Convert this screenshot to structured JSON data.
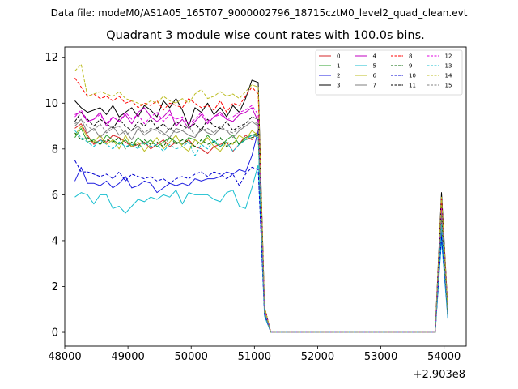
{
  "chart_data": {
    "type": "line",
    "suptitle": "Data file: modeM0/AS1A05_165T07_9000002796_18715cztM0_level2_quad_clean.evt",
    "title": "Quadrant 3 module wise count rates with 100.0s bins.",
    "xlabel": "",
    "ylabel": "",
    "x_offset_label": "+2.903e8",
    "xlim": [
      48000,
      54350
    ],
    "ylim": [
      -0.6,
      12.45
    ],
    "xticks": [
      48000,
      49000,
      50000,
      51000,
      52000,
      53000,
      54000
    ],
    "yticks": [
      0,
      2,
      4,
      6,
      8,
      10,
      12
    ],
    "legend_position": "upper right",
    "legend_columns": 4,
    "x": [
      48160,
      48260,
      48360,
      48460,
      48560,
      48660,
      48760,
      48860,
      48960,
      49060,
      49160,
      49260,
      49360,
      49460,
      49560,
      49660,
      49760,
      49860,
      49960,
      50060,
      50160,
      50260,
      50360,
      50460,
      50560,
      50660,
      50760,
      50860,
      50960,
      51060,
      51160,
      51260,
      51360,
      53860,
      53960,
      54060
    ],
    "series": [
      {
        "name": "0",
        "color": "#d62728",
        "dash": "solid",
        "values": [
          8.9,
          9.1,
          8.6,
          8.2,
          8.4,
          8.3,
          8.6,
          8.5,
          8.3,
          8.1,
          8.2,
          8.3,
          8.0,
          8.2,
          8.4,
          8.1,
          8.3,
          8.2,
          8.4,
          8.1,
          8.0,
          7.8,
          8.1,
          8.2,
          8.3,
          7.9,
          8.2,
          8.6,
          8.4,
          8.8,
          1.0,
          0.0,
          0.0,
          0.0,
          5.0,
          0.9
        ]
      },
      {
        "name": "1",
        "color": "#2ca02c",
        "dash": "solid",
        "values": [
          8.5,
          8.9,
          8.3,
          8.4,
          8.2,
          8.6,
          8.4,
          8.2,
          8.4,
          8.1,
          8.5,
          8.2,
          8.4,
          8.1,
          8.3,
          8.5,
          8.3,
          8.2,
          8.5,
          8.4,
          8.2,
          8.6,
          8.3,
          8.1,
          8.4,
          8.6,
          8.2,
          8.5,
          8.6,
          8.7,
          0.9,
          0.0,
          0.0,
          0.0,
          4.9,
          0.8
        ]
      },
      {
        "name": "2",
        "color": "#1f1fe0",
        "dash": "solid",
        "values": [
          6.6,
          7.2,
          6.5,
          6.5,
          6.4,
          6.6,
          6.3,
          6.5,
          6.8,
          6.3,
          6.4,
          6.6,
          6.5,
          6.1,
          6.3,
          6.5,
          6.4,
          6.5,
          6.4,
          6.7,
          6.6,
          6.7,
          6.7,
          6.8,
          7.0,
          6.9,
          7.1,
          7.0,
          7.7,
          8.8,
          0.8,
          0.0,
          0.0,
          0.0,
          4.4,
          0.6
        ]
      },
      {
        "name": "3",
        "color": "#000000",
        "dash": "solid",
        "values": [
          10.1,
          9.8,
          9.6,
          9.7,
          9.8,
          9.5,
          9.9,
          9.4,
          9.6,
          9.8,
          9.4,
          9.9,
          9.7,
          9.4,
          10.1,
          9.8,
          10.2,
          9.7,
          9.0,
          9.8,
          9.6,
          10.0,
          9.5,
          9.8,
          9.4,
          9.9,
          9.6,
          10.2,
          11.0,
          10.9,
          1.1,
          0.0,
          0.0,
          0.0,
          6.1,
          1.0
        ]
      },
      {
        "name": "4",
        "color": "#c000c0",
        "dash": "solid",
        "values": [
          9.5,
          9.6,
          9.2,
          9.3,
          9.6,
          9.0,
          9.4,
          9.2,
          9.5,
          9.1,
          9.6,
          9.8,
          9.4,
          9.2,
          9.4,
          9.7,
          9.0,
          9.3,
          8.9,
          9.2,
          9.5,
          9.1,
          9.4,
          9.6,
          9.3,
          9.2,
          9.5,
          9.6,
          9.8,
          9.2,
          1.0,
          0.0,
          0.0,
          0.0,
          5.3,
          0.9
        ]
      },
      {
        "name": "5",
        "color": "#17becf",
        "dash": "solid",
        "values": [
          5.9,
          6.1,
          6.0,
          5.6,
          6.0,
          6.0,
          5.4,
          5.5,
          5.2,
          5.5,
          5.8,
          5.7,
          5.9,
          5.8,
          6.0,
          5.9,
          6.2,
          5.6,
          6.1,
          6.0,
          6.0,
          6.0,
          5.8,
          5.7,
          6.1,
          6.2,
          5.5,
          5.4,
          6.3,
          7.3,
          0.7,
          0.0,
          0.0,
          0.0,
          4.0,
          0.6
        ]
      },
      {
        "name": "6",
        "color": "#bcbd22",
        "dash": "solid",
        "values": [
          8.6,
          9.0,
          8.5,
          8.3,
          8.6,
          8.2,
          8.4,
          8.0,
          8.6,
          8.1,
          8.3,
          7.9,
          8.2,
          8.5,
          8.0,
          8.3,
          8.6,
          8.1,
          7.9,
          8.4,
          8.2,
          8.5,
          8.1,
          7.9,
          8.3,
          8.2,
          8.6,
          8.4,
          8.8,
          8.6,
          0.9,
          0.0,
          0.0,
          0.0,
          4.8,
          0.8
        ]
      },
      {
        "name": "7",
        "color": "#7f7f7f",
        "dash": "solid",
        "values": [
          9.0,
          9.3,
          8.7,
          8.9,
          8.5,
          8.8,
          9.0,
          8.6,
          8.8,
          8.4,
          8.9,
          8.6,
          8.8,
          8.9,
          8.7,
          8.5,
          8.9,
          8.8,
          8.6,
          8.5,
          8.9,
          8.7,
          8.6,
          8.9,
          8.8,
          8.5,
          8.8,
          9.0,
          9.2,
          9.0,
          0.9,
          0.0,
          0.0,
          0.0,
          5.1,
          0.8
        ]
      },
      {
        "name": "8",
        "color": "#ff0000",
        "dash": "dashed",
        "values": [
          11.1,
          10.7,
          10.3,
          10.4,
          10.2,
          10.3,
          10.1,
          10.3,
          10.0,
          10.1,
          9.8,
          10.0,
          9.9,
          10.1,
          9.7,
          10.0,
          9.9,
          9.8,
          10.2,
          10.0,
          9.8,
          9.9,
          9.7,
          10.1,
          9.6,
          10.0,
          9.9,
          10.3,
          10.7,
          10.4,
          1.1,
          0.0,
          0.0,
          0.0,
          5.8,
          1.0
        ]
      },
      {
        "name": "9",
        "color": "#006400",
        "dash": "dashed",
        "values": [
          8.7,
          8.4,
          8.5,
          8.3,
          8.2,
          8.4,
          8.3,
          8.5,
          8.0,
          8.3,
          8.1,
          8.4,
          8.2,
          8.3,
          8.1,
          8.5,
          8.2,
          8.4,
          8.3,
          8.1,
          8.4,
          8.2,
          8.3,
          8.5,
          8.1,
          8.3,
          8.2,
          8.4,
          8.5,
          8.6,
          0.9,
          0.0,
          0.0,
          0.0,
          4.9,
          0.8
        ]
      },
      {
        "name": "10",
        "color": "#0000d0",
        "dash": "dashed",
        "values": [
          7.5,
          7.0,
          7.0,
          6.9,
          6.8,
          6.9,
          6.7,
          7.0,
          6.6,
          6.9,
          6.8,
          6.7,
          6.8,
          6.6,
          6.7,
          6.5,
          6.7,
          6.8,
          6.7,
          6.9,
          7.0,
          6.8,
          7.0,
          6.9,
          6.7,
          6.9,
          6.4,
          6.9,
          7.2,
          7.1,
          0.8,
          0.0,
          0.0,
          0.0,
          4.2,
          0.7
        ]
      },
      {
        "name": "11",
        "color": "#000000",
        "dash": "dashed",
        "values": [
          9.2,
          9.6,
          9.3,
          9.0,
          9.3,
          9.1,
          8.9,
          9.3,
          9.0,
          8.8,
          9.2,
          9.0,
          9.3,
          8.9,
          9.1,
          8.8,
          9.2,
          9.0,
          8.9,
          9.1,
          8.8,
          9.3,
          9.0,
          8.9,
          9.2,
          8.8,
          9.0,
          9.1,
          9.4,
          9.3,
          1.0,
          0.0,
          0.0,
          0.0,
          5.5,
          0.9
        ]
      },
      {
        "name": "12",
        "color": "#e000e0",
        "dash": "dashed",
        "values": [
          9.4,
          9.7,
          9.2,
          9.3,
          9.5,
          9.1,
          9.4,
          9.2,
          9.6,
          9.3,
          9.5,
          9.1,
          9.4,
          9.6,
          9.2,
          9.5,
          9.3,
          9.4,
          9.1,
          9.3,
          9.6,
          9.2,
          9.4,
          9.5,
          9.3,
          9.4,
          9.6,
          9.7,
          9.9,
          9.5,
          1.0,
          0.0,
          0.0,
          0.0,
          5.4,
          0.9
        ]
      },
      {
        "name": "13",
        "color": "#17becf",
        "dash": "dashed",
        "values": [
          8.8,
          8.5,
          8.3,
          8.1,
          8.4,
          8.2,
          8.0,
          8.3,
          8.1,
          8.2,
          8.0,
          8.3,
          8.1,
          8.2,
          7.9,
          8.2,
          8.0,
          8.1,
          8.3,
          7.7,
          8.2,
          8.0,
          8.4,
          8.1,
          8.3,
          7.9,
          8.2,
          8.4,
          8.6,
          8.5,
          0.9,
          0.0,
          0.0,
          0.0,
          4.7,
          0.7
        ]
      },
      {
        "name": "14",
        "color": "#bcbd22",
        "dash": "dashed",
        "values": [
          11.4,
          11.7,
          10.3,
          10.4,
          10.5,
          10.4,
          10.3,
          10.5,
          10.2,
          10.1,
          10.0,
          9.9,
          10.1,
          10.0,
          10.3,
          10.1,
          10.0,
          10.2,
          10.0,
          10.4,
          10.6,
          10.2,
          10.3,
          10.5,
          10.3,
          10.4,
          10.2,
          10.5,
          10.8,
          10.7,
          1.1,
          0.0,
          0.0,
          0.0,
          5.9,
          1.0
        ]
      },
      {
        "name": "15",
        "color": "#808080",
        "dash": "dashed",
        "values": [
          9.1,
          9.3,
          9.0,
          8.8,
          9.1,
          8.7,
          8.9,
          9.0,
          8.6,
          8.8,
          9.0,
          8.7,
          8.9,
          8.8,
          8.6,
          8.9,
          8.7,
          8.8,
          9.0,
          8.6,
          8.8,
          8.9,
          8.7,
          9.0,
          8.8,
          8.7,
          8.9,
          9.0,
          9.2,
          9.1,
          0.9,
          0.0,
          0.0,
          0.0,
          5.2,
          0.8
        ]
      }
    ]
  }
}
